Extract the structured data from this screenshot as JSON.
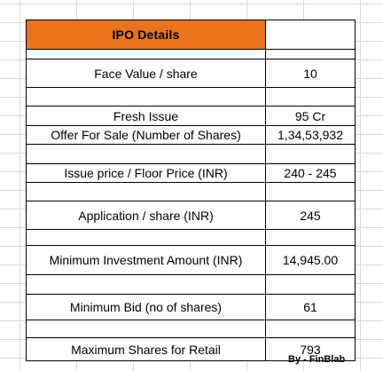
{
  "table": {
    "title": "IPO Details",
    "title_color": "#e7741f",
    "rows": [
      {
        "label": "Face Value / share",
        "value": "10"
      },
      {
        "label": "Fresh Issue",
        "value": "95 Cr"
      },
      {
        "label": "Offer For Sale (Number of Shares)",
        "value": "1,34,53,932"
      },
      {
        "label": "Issue price / Floor Price (INR)",
        "value": "240 - 245"
      },
      {
        "label": "Application / share (INR)",
        "value": "245"
      },
      {
        "label": "Minimum Investment Amount (INR)",
        "value": "14,945.00"
      },
      {
        "label": "Minimum Bid (no of shares)",
        "value": "61"
      },
      {
        "label": "Maximum Shares for Retail",
        "value": "793"
      }
    ]
  },
  "credit": "By - FinBlab"
}
